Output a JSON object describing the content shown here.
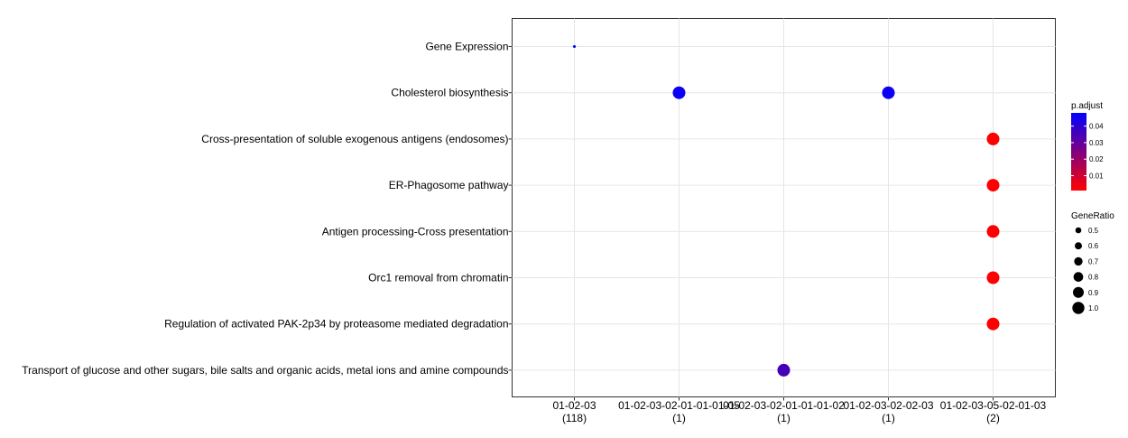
{
  "chart_data": {
    "type": "scatter",
    "title": "",
    "xlabel": "",
    "ylabel": "",
    "grid": true,
    "legend_position": "right",
    "categories_x": [
      {
        "name": "01-02-03",
        "count": "(118)"
      },
      {
        "name": "01-02-03-02-01-01-01-05",
        "count": "(1)"
      },
      {
        "name": "01-02-03-02-01-01-01-02",
        "count": "(1)"
      },
      {
        "name": "01-02-03-02-02-03",
        "count": "(1)"
      },
      {
        "name": "01-02-03-05-02-01-03",
        "count": "(2)"
      }
    ],
    "categories_y": [
      "Gene Expression",
      "Cholesterol biosynthesis",
      "Cross-presentation of soluble exogenous antigens (endosomes)",
      "ER-Phagosome pathway",
      "Antigen processing-Cross presentation",
      "Orc1 removal from chromatin",
      "Regulation of activated PAK-2p34 by proteasome mediated degradation",
      "Transport of glucose and other sugars, bile salts and organic acids, metal ions and amine compounds"
    ],
    "points": [
      {
        "x": "01-02-03",
        "y": "Gene Expression",
        "gene_ratio": 0.01,
        "p_adjust": 0.048
      },
      {
        "x": "01-02-03-02-01-01-01-05",
        "y": "Cholesterol biosynthesis",
        "gene_ratio": 1.0,
        "p_adjust": 0.046
      },
      {
        "x": "01-02-03-02-02-03",
        "y": "Cholesterol biosynthesis",
        "gene_ratio": 1.0,
        "p_adjust": 0.046
      },
      {
        "x": "01-02-03-05-02-01-03",
        "y": "Cross-presentation of soluble exogenous antigens (endosomes)",
        "gene_ratio": 1.0,
        "p_adjust": 0.001
      },
      {
        "x": "01-02-03-05-02-01-03",
        "y": "ER-Phagosome pathway",
        "gene_ratio": 1.0,
        "p_adjust": 0.001
      },
      {
        "x": "01-02-03-05-02-01-03",
        "y": "Antigen processing-Cross presentation",
        "gene_ratio": 1.0,
        "p_adjust": 0.001
      },
      {
        "x": "01-02-03-05-02-01-03",
        "y": "Orc1 removal from chromatin",
        "gene_ratio": 1.0,
        "p_adjust": 0.001
      },
      {
        "x": "01-02-03-05-02-01-03",
        "y": "Regulation of activated PAK-2p34 by proteasome mediated degradation",
        "gene_ratio": 1.0,
        "p_adjust": 0.001
      },
      {
        "x": "01-02-03-02-01-01-01-02",
        "y": "Transport of glucose and other sugars, bile salts and organic acids, metal ions and amine compounds",
        "gene_ratio": 1.0,
        "p_adjust": 0.035
      }
    ],
    "color_legend": {
      "title": "p.adjust",
      "ticks": [
        "0.04",
        "0.03",
        "0.02",
        "0.01"
      ],
      "tick_values": [
        0.04,
        0.03,
        0.02,
        0.01
      ],
      "range": [
        0.001,
        0.048
      ],
      "low_color": "#ff0000",
      "high_color": "#0000ff"
    },
    "size_legend": {
      "title": "GeneRatio",
      "entries": [
        "0.5",
        "0.6",
        "0.7",
        "0.8",
        "0.9",
        "1.0"
      ],
      "values": [
        0.5,
        0.6,
        0.7,
        0.8,
        0.9,
        1.0
      ]
    }
  }
}
